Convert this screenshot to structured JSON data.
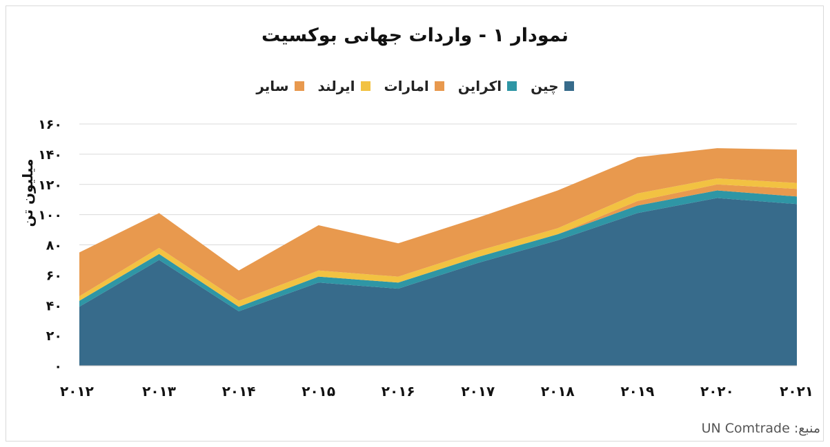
{
  "chart_data": {
    "type": "area",
    "stacked": true,
    "title": "نمودار ۱ - واردات جهانی بوکسیت",
    "ylabel": "میلیون تن",
    "xlabel": "",
    "x": [
      "۲۰۱۲",
      "۲۰۱۳",
      "۲۰۱۴",
      "۲۰۱۵",
      "۲۰۱۶",
      "۲۰۱۷",
      "۲۰۱۸",
      "۲۰۱۹",
      "۲۰۲۰",
      "۲۰۲۱"
    ],
    "ylim": [
      0,
      160
    ],
    "yticks": [
      0,
      20,
      40,
      60,
      80,
      100,
      120,
      140,
      160
    ],
    "ytick_labels": [
      "۰",
      "۲۰",
      "۴۰",
      "۶۰",
      "۸۰",
      "۱۰۰",
      "۱۲۰",
      "۱۴۰",
      "۱۶۰"
    ],
    "grid": true,
    "legend_position": "top",
    "series": [
      {
        "name": "چین",
        "color": "#376b8b",
        "values": [
          39,
          70,
          36,
          55,
          51,
          68,
          83,
          101,
          111,
          107
        ]
      },
      {
        "name": "اکراین",
        "color": "#2f96a5",
        "values": [
          4,
          4,
          3,
          4,
          4,
          4,
          4,
          5,
          5,
          5
        ]
      },
      {
        "name": "امارات",
        "color": "#e8994e",
        "values": [
          0,
          0,
          0,
          0,
          0,
          0,
          0,
          3,
          4,
          5
        ]
      },
      {
        "name": "ایرلند",
        "color": "#f2c242",
        "values": [
          3,
          4,
          4,
          4,
          4,
          4,
          4,
          5,
          4,
          4
        ]
      },
      {
        "name": "سایر",
        "color": "#e8994e",
        "values": [
          29,
          23,
          20,
          30,
          22,
          22,
          25,
          24,
          20,
          22
        ]
      }
    ]
  },
  "source": "منبع: UN Comtrade"
}
